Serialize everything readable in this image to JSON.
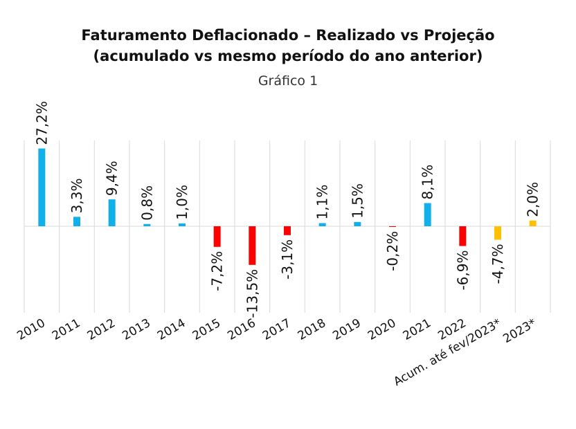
{
  "chart_data": {
    "type": "bar",
    "title": "Faturamento Deflacionado – Realizado vs Projeção",
    "title_line2": "(acumulado vs mesmo período do ano anterior)",
    "subtitle": "Gráfico 1",
    "categories": [
      "2010",
      "2011",
      "2012",
      "2013",
      "2014",
      "2015",
      "2016",
      "2017",
      "2018",
      "2019",
      "2020",
      "2021",
      "2022",
      "Acum. até fev/2023*",
      "2023*"
    ],
    "values": [
      27.2,
      3.3,
      9.4,
      0.8,
      1.0,
      -7.2,
      -13.5,
      -3.1,
      1.1,
      1.5,
      -0.2,
      8.1,
      -6.9,
      -4.7,
      2.0
    ],
    "data_labels": [
      "27,2%",
      "3,3%",
      "9,4%",
      "0,8%",
      "1,0%",
      "-7,2%",
      "-13,5%",
      "-3,1%",
      "1,1%",
      "1,5%",
      "-0,2%",
      "8,1%",
      "-6,9%",
      "-4,7%",
      "2,0%"
    ],
    "bar_colors": [
      "#12B0EA",
      "#12B0EA",
      "#12B0EA",
      "#12B0EA",
      "#12B0EA",
      "#FF0000",
      "#FF0000",
      "#FF0000",
      "#12B0EA",
      "#12B0EA",
      "#FF0000",
      "#12B0EA",
      "#FF0000",
      "#FFC000",
      "#FFC000"
    ],
    "ylim": [
      -30,
      30
    ],
    "xlabel": "",
    "ylabel": "",
    "grid": "vertical",
    "legend": "none"
  }
}
